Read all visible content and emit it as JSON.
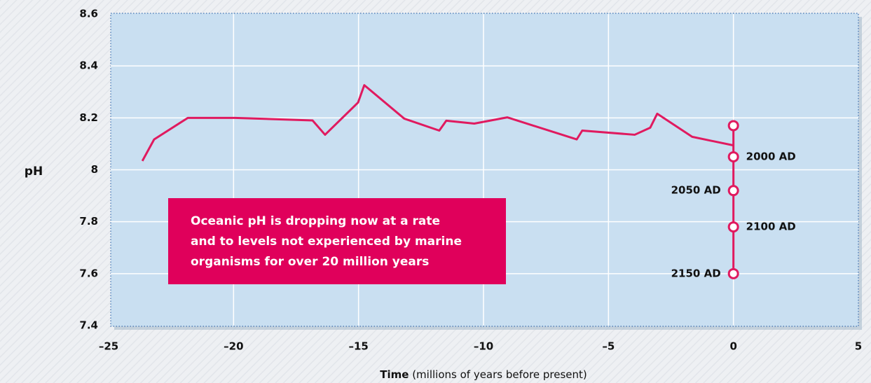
{
  "chart_data": {
    "type": "line",
    "y_label": "pH",
    "x_label_bold": "Time",
    "x_label": "(millions of years before present)",
    "annotation": [
      "Oceanic pH is dropping now at a rate",
      "and to levels not experienced by marine",
      "organisms for over 20 million years"
    ],
    "xlim": [
      -25,
      5
    ],
    "ylim": [
      7.4,
      8.6
    ],
    "xticks": [
      {
        "value": -25,
        "label": "–25"
      },
      {
        "value": -20,
        "label": "–20"
      },
      {
        "value": -15,
        "label": "–15"
      },
      {
        "value": -10,
        "label": "–10"
      },
      {
        "value": -5,
        "label": "–5"
      },
      0,
      5
    ],
    "yticks": [
      7.4,
      7.6,
      7.8,
      8,
      8.2,
      8.4,
      8.6
    ],
    "grid": true,
    "series": [
      {
        "color": "#e01a5f",
        "x": [
          -23.65,
          -23.18,
          -21.83,
          -19.95,
          -16.84,
          -16.34,
          -15.02,
          -14.77,
          -13.17,
          -11.77,
          -11.49,
          -10.37,
          -9.05,
          -6.27,
          -6.05,
          -3.95,
          -3.33,
          -3.05,
          -1.65,
          0
        ],
        "values": [
          8.034,
          8.117,
          8.2,
          8.2,
          8.19,
          8.135,
          8.259,
          8.326,
          8.197,
          8.151,
          8.189,
          8.178,
          8.202,
          8.117,
          8.151,
          8.135,
          8.162,
          8.216,
          8.127,
          8.094
        ]
      },
      {
        "color": "#e01a5f",
        "x": [
          0,
          0,
          0,
          0,
          0
        ],
        "values": [
          8.17,
          8.05,
          7.92,
          7.78,
          7.6
        ],
        "value_labels": [
          null,
          "2000 AD",
          "2050 AD",
          "2100 AD",
          "2150 AD"
        ]
      }
    ]
  }
}
